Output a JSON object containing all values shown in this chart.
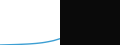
{
  "title": "",
  "line_color": "#3d9fd3",
  "line_width": 1.0,
  "background_color": "#0a0a0a",
  "plot_bg_color": "#ffffff",
  "x_values": [
    0,
    1,
    2,
    3,
    4,
    5,
    6,
    7,
    8,
    9,
    10,
    11,
    12,
    13,
    14,
    15,
    16,
    17,
    18,
    19,
    20
  ],
  "y_values": [
    0,
    0.2,
    0.4,
    0.6,
    0.8,
    1.0,
    1.2,
    1.5,
    1.8,
    2.1,
    2.5,
    3.0,
    3.5,
    4.2,
    5.0,
    6.0,
    7.2,
    8.5,
    10,
    12,
    14
  ],
  "ylim": [
    0,
    100
  ],
  "xlim": [
    0,
    20
  ]
}
